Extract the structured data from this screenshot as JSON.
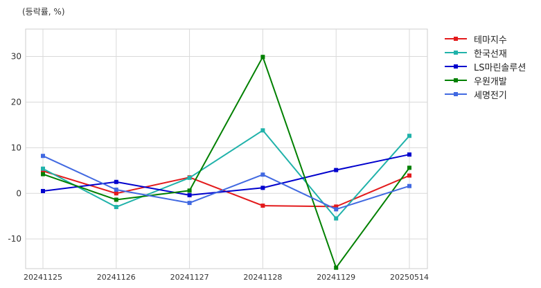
{
  "unit_label": "(등락률, %)",
  "chart_data": {
    "type": "line",
    "categories": [
      "20241125",
      "20241126",
      "20241127",
      "20241128",
      "20241129",
      "20250514"
    ],
    "ylim": [
      -16.5,
      36
    ],
    "yticks": [
      -10,
      0,
      10,
      20,
      30
    ],
    "grid": true,
    "legend_position": "top-right",
    "series": [
      {
        "name": "테마지수",
        "color": "#e31a1c",
        "values": [
          4.9,
          0.0,
          3.5,
          -2.7,
          -2.9,
          3.9
        ]
      },
      {
        "name": "한국선재",
        "color": "#20b2aa",
        "values": [
          5.4,
          -3.0,
          3.4,
          13.8,
          -5.5,
          12.6
        ]
      },
      {
        "name": "LS마린솔루션",
        "color": "#0000cd",
        "values": [
          0.5,
          2.5,
          -0.4,
          1.2,
          5.1,
          8.5
        ]
      },
      {
        "name": "우원개발",
        "color": "#008000",
        "values": [
          4.2,
          -1.4,
          0.6,
          29.9,
          -16.3,
          5.6
        ]
      },
      {
        "name": "세명전기",
        "color": "#4169e1",
        "values": [
          8.2,
          0.8,
          -2.1,
          4.1,
          -3.5,
          1.6
        ]
      }
    ]
  }
}
